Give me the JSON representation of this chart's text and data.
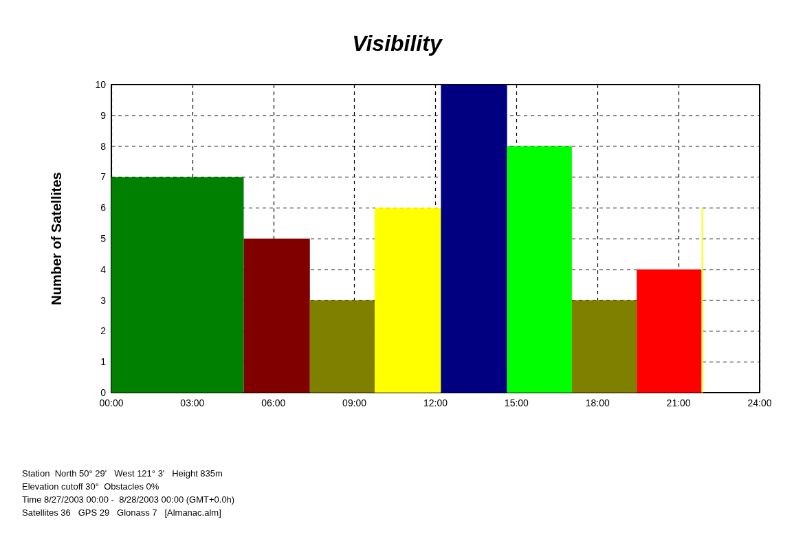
{
  "chart_data": {
    "type": "histogram",
    "title": "Visibility",
    "ylabel": "Number of Satellites",
    "bins": [
      0,
      4.9,
      7.35,
      9.75,
      12.2,
      14.65,
      17.05,
      19.45,
      21.85,
      21.9
    ],
    "values": [
      7,
      5,
      3,
      6,
      10,
      8,
      3,
      4,
      6
    ],
    "colors": [
      "#008000",
      "#800000",
      "#808000",
      "#ffff00",
      "#000080",
      "#00ff00",
      "#808000",
      "#ff0000",
      "#ffff00"
    ],
    "xlim": [
      0,
      24
    ],
    "xticks": [
      {
        "value": 0,
        "label": "00:00"
      },
      {
        "value": 3,
        "label": "03:00"
      },
      {
        "value": 6,
        "label": "06:00"
      },
      {
        "value": 9,
        "label": "09:00"
      },
      {
        "value": 12,
        "label": "12:00"
      },
      {
        "value": 15,
        "label": "15:00"
      },
      {
        "value": 18,
        "label": "18:00"
      },
      {
        "value": 21,
        "label": "21:00"
      },
      {
        "value": 24,
        "label": "24:00"
      }
    ],
    "ylim": [
      0,
      10
    ],
    "yticks": [
      0,
      1,
      2,
      3,
      4,
      5,
      6,
      7,
      8,
      9,
      10
    ],
    "grid": true,
    "annotations": [
      "Station  North 50° 29'   West 121° 3'   Height 835m",
      "Elevation cutoff 30°  Obstacles 0%",
      "Time 8/27/2003 00:00 -  8/28/2003 00:00 (GMT+0.0h)",
      "Satellites 36   GPS 29   Glonass 7   [Almanac.alm]"
    ]
  }
}
